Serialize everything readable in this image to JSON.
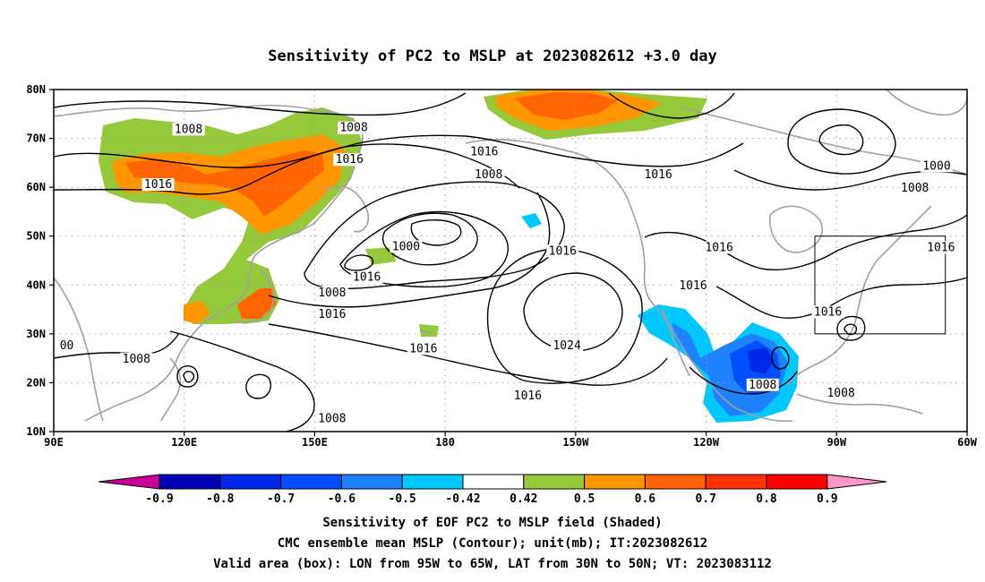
{
  "title": "Sensitivity of PC2 to MSLP at 2023082612 +3.0 day",
  "map": {
    "lat_labels": [
      "80N",
      "70N",
      "60N",
      "50N",
      "40N",
      "30N",
      "20N",
      "10N"
    ],
    "lon_labels": [
      "90E",
      "120E",
      "150E",
      "180",
      "150W",
      "120W",
      "90W",
      "60W"
    ],
    "contour_labels": [
      {
        "text": "1008",
        "lon": 121,
        "lat": 71.5
      },
      {
        "text": "1008",
        "lon": 159,
        "lat": 71.8
      },
      {
        "text": "1016",
        "lon": 158,
        "lat": 65.3
      },
      {
        "text": "1016",
        "lon": 114,
        "lat": 60.2
      },
      {
        "text": "1016",
        "lon": 189,
        "lat": 66.9
      },
      {
        "text": "1008",
        "lon": 190,
        "lat": 62.2
      },
      {
        "text": "1016",
        "lon": 229,
        "lat": 62.2
      },
      {
        "text": "1008",
        "lon": 288,
        "lat": 59.5
      },
      {
        "text": "1000",
        "lon": 293,
        "lat": 64.0
      },
      {
        "text": "1000",
        "lon": 171,
        "lat": 47.5
      },
      {
        "text": "1016",
        "lon": 162,
        "lat": 41.2
      },
      {
        "text": "1008",
        "lon": 154,
        "lat": 38.0
      },
      {
        "text": "1016",
        "lon": 154,
        "lat": 33.6
      },
      {
        "text": "1016",
        "lon": 207,
        "lat": 46.6
      },
      {
        "text": "1016",
        "lon": 243,
        "lat": 47.3
      },
      {
        "text": "1016",
        "lon": 294,
        "lat": 47.3
      },
      {
        "text": "1016",
        "lon": 237,
        "lat": 39.5
      },
      {
        "text": "1016",
        "lon": 268,
        "lat": 34.1
      },
      {
        "text": "1016",
        "lon": 175,
        "lat": 26.6
      },
      {
        "text": "1024",
        "lon": 208,
        "lat": 27.2
      },
      {
        "text": "1008",
        "lon": 109,
        "lat": 24.5
      },
      {
        "text": "00",
        "lon": 93,
        "lat": 27.2
      },
      {
        "text": "1016",
        "lon": 199,
        "lat": 17.0
      },
      {
        "text": "1008",
        "lon": 154,
        "lat": 12.3
      },
      {
        "text": "1008",
        "lon": 253,
        "lat": 19.2
      },
      {
        "text": "1008",
        "lon": 271,
        "lat": 17.5
      }
    ]
  },
  "colorbar": {
    "ticks": [
      "-0.9",
      "-0.8",
      "-0.7",
      "-0.6",
      "-0.5",
      "-0.42",
      "0.42",
      "0.5",
      "0.6",
      "0.7",
      "0.8",
      "0.9"
    ],
    "colors": [
      "#0000b4",
      "#0028e6",
      "#0050ff",
      "#1e82ff",
      "#00c8ff",
      "#ffffff",
      "#96c83c",
      "#ff9600",
      "#ff6400",
      "#ff3200",
      "#ff0000"
    ],
    "low_end_color": "#c80096",
    "high_end_color": "#ff96c8"
  },
  "footer": {
    "line1": "Sensitivity of EOF PC2 to MSLP field (Shaded)",
    "line2": "CMC ensemble mean MSLP (Contour); unit(mb); IT:2023082612",
    "line3": "Valid area (box): LON from 95W to 65W, LAT from 30N to 50N; VT: 2023083112"
  }
}
